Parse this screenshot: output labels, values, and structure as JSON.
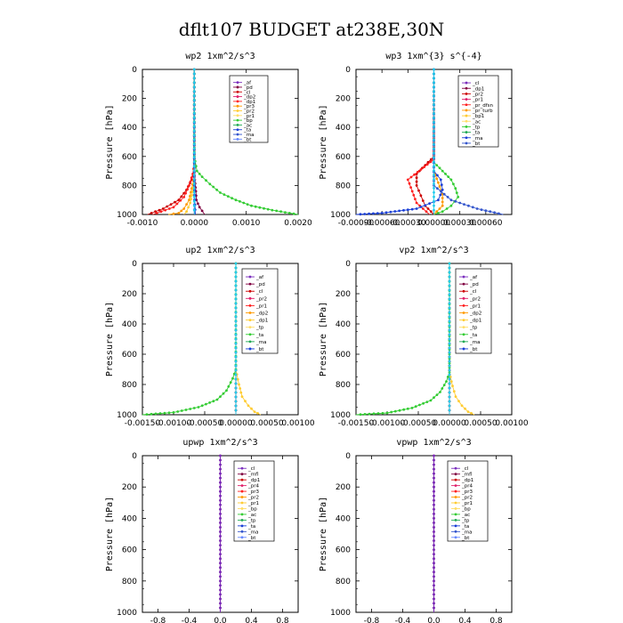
{
  "figure_title": "dflt107  BUDGET at238E,30N",
  "chart_data": [
    {
      "type": "line",
      "title": "wp2  1xm^2/s^3",
      "xlabel": "",
      "ylabel": "Pressure [hPa]",
      "xlim": [
        -0.001,
        0.002
      ],
      "ylim": [
        1000,
        0
      ],
      "xticks": [
        -0.001,
        0.0,
        0.001,
        0.002
      ],
      "xtick_labels": [
        "-0.0010",
        "0.0000",
        "0.0010",
        "0.0020"
      ],
      "yticks": [
        0,
        200,
        400,
        600,
        800,
        1000
      ],
      "ytick_labels": [
        "0",
        "200",
        "400",
        "600",
        "800",
        "1000"
      ],
      "legend": [
        "_af",
        "_pd",
        "_cl",
        "_dp2",
        "_dp1",
        "_pr3",
        "_pr2",
        "_pr1",
        "_bp",
        "_ac",
        "_ta",
        "_ma",
        "_bt"
      ],
      "series": [
        {
          "name": "_af",
          "color": "#7b2fbe",
          "points": [
            [
              0,
              0
            ],
            [
              0,
              600
            ],
            [
              0,
              800
            ],
            [
              0,
              900
            ],
            [
              0,
              1000
            ]
          ]
        },
        {
          "name": "_pd",
          "color": "#800040",
          "points": [
            [
              0,
              0
            ],
            [
              0,
              700
            ],
            [
              1e-05,
              760
            ],
            [
              3e-05,
              840
            ],
            [
              4e-05,
              900
            ],
            [
              0.0001,
              950
            ],
            [
              0.0002,
              1000
            ]
          ]
        },
        {
          "name": "_cl",
          "color": "#cc0000",
          "points": [
            [
              0,
              0
            ],
            [
              0,
              700
            ],
            [
              -5e-05,
              760
            ],
            [
              -0.00015,
              830
            ],
            [
              -0.0003,
              900
            ],
            [
              -0.0006,
              960
            ],
            [
              -0.0009,
              1000
            ]
          ]
        },
        {
          "name": "_dp1",
          "color": "#ff2020",
          "points": [
            [
              0,
              0
            ],
            [
              0,
              650
            ],
            [
              -3e-05,
              720
            ],
            [
              -0.0001,
              800
            ],
            [
              -0.0002,
              880
            ],
            [
              -0.0004,
              950
            ],
            [
              -0.0008,
              1000
            ]
          ]
        },
        {
          "name": "_pr2",
          "color": "#ff9900",
          "points": [
            [
              0,
              0
            ],
            [
              0,
              740
            ],
            [
              -5e-05,
              820
            ],
            [
              -0.0001,
              900
            ],
            [
              -0.0002,
              960
            ],
            [
              -0.0003,
              990
            ],
            [
              -0.0005,
              1000
            ]
          ]
        },
        {
          "name": "_pr1",
          "color": "#ffcc33",
          "points": [
            [
              0,
              0
            ],
            [
              0,
              760
            ],
            [
              -3e-05,
              840
            ],
            [
              -8e-05,
              920
            ],
            [
              -0.00015,
              980
            ],
            [
              -0.0002,
              1000
            ]
          ]
        },
        {
          "name": "_bp",
          "color": "#33cc33",
          "points": [
            [
              0,
              0
            ],
            [
              0,
              600
            ],
            [
              5e-05,
              700
            ],
            [
              0.00015,
              740
            ],
            [
              0.0003,
              790
            ],
            [
              0.0005,
              850
            ],
            [
              0.0008,
              900
            ],
            [
              0.0011,
              940
            ],
            [
              0.0015,
              970
            ],
            [
              0.002,
              1000
            ]
          ]
        },
        {
          "name": "_ta",
          "color": "#1a3fd6",
          "points": [
            [
              0,
              0
            ],
            [
              0,
              800
            ],
            [
              1e-05,
              900
            ],
            [
              2e-05,
              1000
            ]
          ]
        },
        {
          "name": "_bt",
          "color": "#22ccee",
          "points": [
            [
              0,
              0
            ],
            [
              0,
              1000
            ]
          ]
        }
      ]
    },
    {
      "type": "line",
      "title": "wp3  1xm^{3} s^{-4}",
      "xlabel": "",
      "ylabel": "Pressure [hPa]",
      "xlim": [
        -0.0009,
        0.0009
      ],
      "ylim": [
        1000,
        0
      ],
      "xticks": [
        -0.0009,
        -0.0006,
        -0.0003,
        0.0,
        0.0003,
        0.0006
      ],
      "xtick_labels": [
        "-0.00090",
        "-0.00060",
        "-0.00030",
        "0.00000",
        "0.00030",
        "0.00060"
      ],
      "yticks": [
        0,
        200,
        400,
        600,
        800,
        1000
      ],
      "ytick_labels": [
        "0",
        "200",
        "400",
        "600",
        "800",
        "1000"
      ],
      "legend": [
        "_cl",
        "_dp1",
        "_pr2",
        "_pr1",
        "_pr_dfsn",
        "_pr_turb",
        "_bp1",
        "_ac",
        "_tp",
        "_ta",
        "_ma",
        "_bt"
      ],
      "series": [
        {
          "name": "_cl",
          "color": "#cc0000",
          "points": [
            [
              0,
              0
            ],
            [
              0,
              600
            ],
            [
              -0.0001,
              660
            ],
            [
              -0.0002,
              720
            ],
            [
              -0.0002,
              800
            ],
            [
              -0.00015,
              870
            ],
            [
              -0.0001,
              940
            ],
            [
              0,
              1000
            ]
          ]
        },
        {
          "name": "_dp1",
          "color": "#ff2020",
          "points": [
            [
              0,
              0
            ],
            [
              0,
              620
            ],
            [
              -0.00015,
              690
            ],
            [
              -0.0003,
              760
            ],
            [
              -0.00025,
              840
            ],
            [
              -0.0002,
              920
            ],
            [
              -5e-05,
              1000
            ]
          ]
        },
        {
          "name": "_pr1",
          "color": "#ff9900",
          "points": [
            [
              0,
              0
            ],
            [
              0,
              700
            ],
            [
              5e-05,
              780
            ],
            [
              0.0001,
              860
            ],
            [
              0.0001,
              940
            ],
            [
              0,
              1000
            ]
          ]
        },
        {
          "name": "_bp1",
          "color": "#33cc33",
          "points": [
            [
              0,
              0
            ],
            [
              0,
              640
            ],
            [
              0.0001,
              700
            ],
            [
              0.0002,
              760
            ],
            [
              0.00025,
              820
            ],
            [
              0.00028,
              880
            ],
            [
              0.0002,
              940
            ],
            [
              0.0001,
              980
            ],
            [
              0,
              1000
            ]
          ]
        },
        {
          "name": "_tp",
          "color": "#1a3fd6",
          "points": [
            [
              0,
              0
            ],
            [
              0,
              700
            ],
            [
              8e-05,
              760
            ],
            [
              0.0001,
              830
            ],
            [
              5e-05,
              900
            ],
            [
              -0.0002,
              960
            ],
            [
              -0.0006,
              990
            ],
            [
              -0.0009,
              1000
            ]
          ]
        },
        {
          "name": "_ta",
          "color": "#3355cc",
          "points": [
            [
              0,
              0
            ],
            [
              0,
              800
            ],
            [
              0.0002,
              900
            ],
            [
              0.0005,
              960
            ],
            [
              0.0008,
              1000
            ]
          ]
        },
        {
          "name": "_bt",
          "color": "#22ccee",
          "points": [
            [
              0,
              0
            ],
            [
              0,
              1000
            ]
          ]
        }
      ]
    },
    {
      "type": "line",
      "title": "up2  1xm^2/s^3",
      "xlabel": "",
      "ylabel": "Pressure [hPa]",
      "xlim": [
        -0.0015,
        0.001
      ],
      "ylim": [
        1000,
        0
      ],
      "xticks": [
        -0.0015,
        -0.001,
        -0.0005,
        0.0,
        0.0005,
        0.001
      ],
      "xtick_labels": [
        "-0.00150",
        "-0.00100",
        "-0.00050",
        "0.00000",
        "0.00050",
        "0.00100"
      ],
      "yticks": [
        0,
        200,
        400,
        600,
        800,
        1000
      ],
      "ytick_labels": [
        "0",
        "200",
        "400",
        "600",
        "800",
        "1000"
      ],
      "legend": [
        "_af",
        "_pd",
        "_cl",
        "_pr2",
        "_pr1",
        "_dp2",
        "_dp1",
        "_tp",
        "_ta",
        "_ma",
        "_bt"
      ],
      "series": [
        {
          "name": "_af",
          "color": "#800040",
          "points": [
            [
              0,
              0
            ],
            [
              0,
              1000
            ]
          ]
        },
        {
          "name": "_pd",
          "color": "#cc0000",
          "points": [
            [
              0,
              0
            ],
            [
              0,
              1000
            ]
          ]
        },
        {
          "name": "_pr1",
          "color": "#ffcc33",
          "points": [
            [
              0,
              0
            ],
            [
              0,
              700
            ],
            [
              5e-05,
              800
            ],
            [
              0.0001,
              880
            ],
            [
              0.0002,
              940
            ],
            [
              0.0003,
              980
            ],
            [
              0.0004,
              1000
            ]
          ]
        },
        {
          "name": "_dp1",
          "color": "#33cc33",
          "points": [
            [
              0,
              0
            ],
            [
              0,
              700
            ],
            [
              -5e-05,
              760
            ],
            [
              -0.00015,
              840
            ],
            [
              -0.0003,
              900
            ],
            [
              -0.0006,
              950
            ],
            [
              -0.001,
              985
            ],
            [
              -0.0015,
              1000
            ]
          ]
        },
        {
          "name": "_bt",
          "color": "#22ccee",
          "points": [
            [
              0,
              0
            ],
            [
              0,
              1000
            ]
          ]
        }
      ]
    },
    {
      "type": "line",
      "title": "vp2  1xm^2/s^3",
      "xlabel": "",
      "ylabel": "Pressure [hPa]",
      "xlim": [
        -0.0015,
        0.001
      ],
      "ylim": [
        1000,
        0
      ],
      "xticks": [
        -0.0015,
        -0.001,
        -0.0005,
        0.0,
        0.0005,
        0.001
      ],
      "xtick_labels": [
        "-0.00150",
        "-0.00100",
        "-0.00050",
        "0.00000",
        "0.00050",
        "0.00100"
      ],
      "yticks": [
        0,
        200,
        400,
        600,
        800,
        1000
      ],
      "ytick_labels": [
        "0",
        "200",
        "400",
        "600",
        "800",
        "1000"
      ],
      "legend": [
        "_af",
        "_pd",
        "_cl",
        "_pr2",
        "_pr1",
        "_dp2",
        "_dp1",
        "_tp",
        "_ta",
        "_ma",
        "_bt"
      ],
      "series": [
        {
          "name": "_af",
          "color": "#800040",
          "points": [
            [
              0,
              0
            ],
            [
              0,
              1000
            ]
          ]
        },
        {
          "name": "_pd",
          "color": "#cc0000",
          "points": [
            [
              0,
              0
            ],
            [
              0,
              1000
            ]
          ]
        },
        {
          "name": "_pr1",
          "color": "#ffcc33",
          "points": [
            [
              0,
              0
            ],
            [
              0,
              720
            ],
            [
              5e-05,
              810
            ],
            [
              0.0001,
              880
            ],
            [
              0.0002,
              940
            ],
            [
              0.0003,
              980
            ],
            [
              0.0004,
              1000
            ]
          ]
        },
        {
          "name": "_dp1",
          "color": "#33cc33",
          "points": [
            [
              0,
              0
            ],
            [
              0,
              720
            ],
            [
              -5e-05,
              780
            ],
            [
              -0.00015,
              850
            ],
            [
              -0.0003,
              905
            ],
            [
              -0.0006,
              955
            ],
            [
              -0.001,
              988
            ],
            [
              -0.0015,
              1000
            ]
          ]
        },
        {
          "name": "_bt",
          "color": "#22ccee",
          "points": [
            [
              0,
              0
            ],
            [
              0,
              1000
            ]
          ]
        }
      ]
    },
    {
      "type": "line",
      "title": "upwp  1xm^2/s^3",
      "xlabel": "",
      "ylabel": "Pressure [hPa]",
      "xlim": [
        -1.0,
        1.0
      ],
      "ylim": [
        1000,
        0
      ],
      "xticks": [
        -0.8,
        -0.4,
        0.0,
        0.4,
        0.8
      ],
      "xtick_labels": [
        "-0.8",
        "-0.4",
        "0.0",
        "0.4",
        "0.8"
      ],
      "yticks": [
        0,
        200,
        400,
        600,
        800,
        1000
      ],
      "ytick_labels": [
        "0",
        "200",
        "400",
        "600",
        "800",
        "1000"
      ],
      "legend": [
        "_cl",
        "_mfl",
        "_dp1",
        "_pr4",
        "_pr3",
        "_pr2",
        "_pr1",
        "_bp",
        "_ac",
        "_tp",
        "_ta",
        "_ma",
        "_bt"
      ],
      "series": [
        {
          "name": "_mfl",
          "color": "#800040",
          "points": [
            [
              0,
              0
            ],
            [
              0,
              1000
            ]
          ]
        },
        {
          "name": "_bt",
          "color": "#7b2fbe",
          "points": [
            [
              0,
              0
            ],
            [
              0,
              1000
            ]
          ]
        }
      ]
    },
    {
      "type": "line",
      "title": "vpwp  1xm^2/s^3",
      "xlabel": "",
      "ylabel": "Pressure [hPa]",
      "xlim": [
        -1.0,
        1.0
      ],
      "ylim": [
        1000,
        0
      ],
      "xticks": [
        -0.8,
        -0.4,
        0.0,
        0.4,
        0.8
      ],
      "xtick_labels": [
        "-0.8",
        "-0.4",
        "0.0",
        "0.4",
        "0.8"
      ],
      "yticks": [
        0,
        200,
        400,
        600,
        800,
        1000
      ],
      "ytick_labels": [
        "0",
        "200",
        "400",
        "600",
        "800",
        "1000"
      ],
      "legend": [
        "_cl",
        "_mfl",
        "_dp1",
        "_pr4",
        "_pr3",
        "_pr2",
        "_pr1",
        "_bp",
        "_ac",
        "_tp",
        "_ta",
        "_ma",
        "_bt"
      ],
      "series": [
        {
          "name": "_mfl",
          "color": "#800040",
          "points": [
            [
              0,
              0
            ],
            [
              0,
              1000
            ]
          ]
        },
        {
          "name": "_bt",
          "color": "#7b2fbe",
          "points": [
            [
              0,
              0
            ],
            [
              0,
              1000
            ]
          ]
        }
      ]
    }
  ],
  "legend_colors": [
    "#7b2fbe",
    "#800040",
    "#cc0000",
    "#e0206a",
    "#ff2020",
    "#ff9900",
    "#ffcc33",
    "#ffdd66",
    "#33cc33",
    "#22aa55",
    "#1a3fd6",
    "#3355cc",
    "#6688ff",
    "#22ccee"
  ]
}
